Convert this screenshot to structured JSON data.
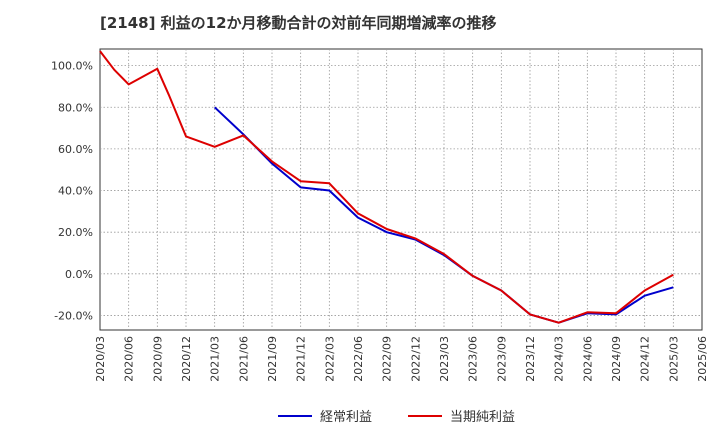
{
  "chart_data": {
    "type": "line",
    "title": "[2148]  利益の12か月移動合計の対前年同期増減率の推移",
    "xlabel": "",
    "ylabel": "",
    "ylim": [
      -27,
      108
    ],
    "y_ticks": [
      -20,
      0,
      20,
      40,
      60,
      80,
      100
    ],
    "y_tick_labels": [
      "-20.0%",
      "0.0%",
      "20.0%",
      "40.0%",
      "60.0%",
      "80.0%",
      "100.0%"
    ],
    "x_tick_labels": [
      "2020/03",
      "2020/06",
      "2020/09",
      "2020/12",
      "2021/03",
      "2021/06",
      "2021/09",
      "2021/12",
      "2022/03",
      "2022/06",
      "2022/09",
      "2022/12",
      "2023/03",
      "2023/06",
      "2023/09",
      "2023/12",
      "2024/03",
      "2024/06",
      "2024/09",
      "2024/12",
      "2025/03",
      "2025/06"
    ],
    "grid": true,
    "legend_position": "bottom",
    "series": [
      {
        "name": "経常利益",
        "color": "#0000cc",
        "points": [
          [
            4,
            80
          ],
          [
            5,
            67
          ],
          [
            6,
            53
          ],
          [
            7,
            41.5
          ],
          [
            8,
            40
          ],
          [
            9,
            27
          ],
          [
            10,
            20
          ],
          [
            11,
            16.5
          ],
          [
            12,
            9
          ],
          [
            13,
            -1
          ],
          [
            14,
            -8
          ],
          [
            15,
            -19.5
          ],
          [
            16,
            -23.5
          ],
          [
            17,
            -19
          ],
          [
            18,
            -19.5
          ],
          [
            19,
            -10.5
          ],
          [
            20,
            -6.5
          ]
        ]
      },
      {
        "name": "当期純利益",
        "color": "#dd0000",
        "points": [
          [
            0,
            107
          ],
          [
            0.5,
            98
          ],
          [
            1,
            91
          ],
          [
            2,
            98.5
          ],
          [
            2.4,
            86
          ],
          [
            3,
            66
          ],
          [
            4,
            61
          ],
          [
            5,
            66.5
          ],
          [
            6,
            54
          ],
          [
            7,
            44.5
          ],
          [
            8,
            43.5
          ],
          [
            9,
            29
          ],
          [
            10,
            21.5
          ],
          [
            11,
            17
          ],
          [
            12,
            9.5
          ],
          [
            13,
            -1
          ],
          [
            14,
            -8
          ],
          [
            15,
            -19.5
          ],
          [
            16,
            -23.5
          ],
          [
            17,
            -18.5
          ],
          [
            18,
            -19
          ],
          [
            19,
            -8
          ],
          [
            20,
            -0.5
          ]
        ]
      }
    ]
  }
}
